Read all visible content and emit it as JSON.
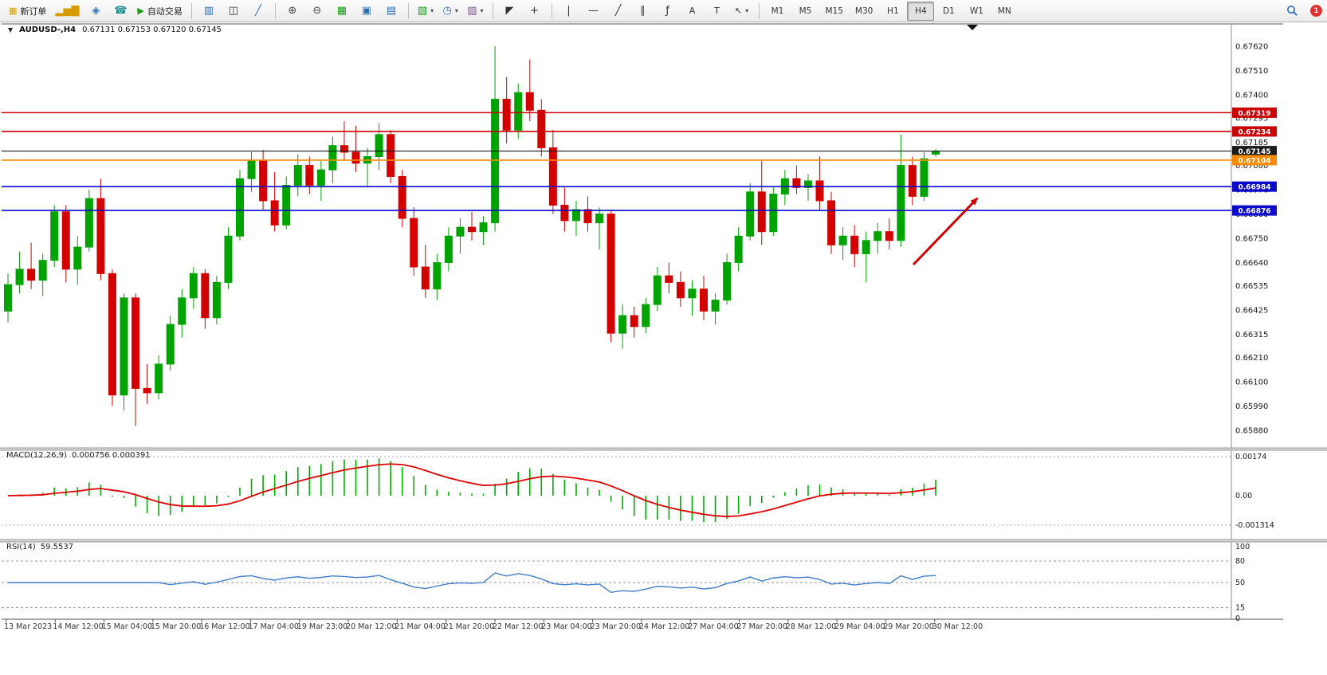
{
  "toolbar": {
    "new_order": "新订单",
    "autotrading": "自动交易",
    "timeframes": [
      "M1",
      "M5",
      "M15",
      "M30",
      "H1",
      "H4",
      "D1",
      "W1",
      "MN"
    ],
    "active_timeframe": "H4",
    "badge_count": "1"
  },
  "header": {
    "title": "AUDUSD-,H4",
    "ohlc_text": "0.67131 0.67153 0.67120 0.67145"
  },
  "icons": {
    "market-watch-icon": "▂▅▇",
    "metaeditor-icon": "◈",
    "support-icon": "☎",
    "autotrading-play-icon": "▶",
    "bar-chart-icon": "▥",
    "candlestick-chart-icon": "◫",
    "line-chart-icon": "╱",
    "zoom-in-icon": "⊕",
    "zoom-out-icon": "⊖",
    "tile-windows-icon": "▦",
    "cascade-windows-icon": "▣",
    "tile-horizontal-icon": "▤",
    "new-chart-icon": "▧",
    "period-icon": "◷",
    "template-icon": "▨",
    "cursor-icon": "◤",
    "crosshair-icon": "+",
    "vline-icon": "|",
    "hline-icon": "—",
    "trendline-icon": "╱",
    "channel-icon": "∥",
    "fibonacci-icon": "ƒ",
    "text-icon": "A",
    "label-icon": "T",
    "arrows-icon": "↖",
    "caret-down-icon": "▾",
    "symbol-dropdown-icon": "▼"
  },
  "colors": {
    "bull": "#00a400",
    "bear": "#d40000",
    "resistance": "#cc0000",
    "support": "#0a0acc",
    "level": "#ff8a00",
    "current": "#1b1b1b",
    "macd_bar": "#00ae00",
    "macd_signal": "#e00000",
    "rsi_line": "#3f7cc9"
  },
  "chart_data": {
    "type": "candlestick",
    "symbol": "AUDUSD-",
    "timeframe": "H4",
    "ohlc_current": [
      0.67131,
      0.67153,
      0.6712,
      0.67145
    ],
    "price_axis": [
      "0.67620",
      "0.67510",
      "0.67400",
      "0.67295",
      "0.67185",
      "0.67080",
      "0.66970",
      "0.66860",
      "0.66750",
      "0.66640",
      "0.66535",
      "0.66425",
      "0.66315",
      "0.66210",
      "0.66100",
      "0.65990",
      "0.65880"
    ],
    "time_axis": [
      "13 Mar 2023",
      "14 Mar 12:00",
      "15 Mar 04:00",
      "15 Mar 20:00",
      "16 Mar 12:00",
      "17 Mar 04:00",
      "19 Mar 23:00",
      "20 Mar 12:00",
      "21 Mar 04:00",
      "21 Mar 20:00",
      "22 Mar 12:00",
      "23 Mar 04:00",
      "23 Mar 20:00",
      "24 Mar 12:00",
      "27 Mar 04:00",
      "27 Mar 20:00",
      "28 Mar 12:00",
      "29 Mar 04:00",
      "29 Mar 20:00",
      "30 Mar 12:00"
    ],
    "hlines": [
      {
        "price": 0.67319,
        "label": "0.67319",
        "color": "#cc0000",
        "type": "resistance"
      },
      {
        "price": 0.67234,
        "label": "0.67234",
        "color": "#cc0000",
        "type": "resistance"
      },
      {
        "price": 0.67104,
        "label": "0.67104",
        "color": "#ff8a00",
        "type": "level"
      },
      {
        "price": 0.66984,
        "label": "0.66984",
        "color": "#0a0acc",
        "type": "support"
      },
      {
        "price": 0.66876,
        "label": "0.66876",
        "color": "#0a0acc",
        "type": "support"
      }
    ],
    "current_price": {
      "value": 0.67145,
      "label": "0.67145"
    },
    "candles": [
      [
        0.6642,
        0.6659,
        0.6637,
        0.6654
      ],
      [
        0.6654,
        0.6669,
        0.665,
        0.6661
      ],
      [
        0.6661,
        0.6673,
        0.6652,
        0.6656
      ],
      [
        0.6656,
        0.6668,
        0.6649,
        0.6665
      ],
      [
        0.6665,
        0.669,
        0.6662,
        0.6687
      ],
      [
        0.6687,
        0.669,
        0.6655,
        0.6661
      ],
      [
        0.6661,
        0.6676,
        0.6654,
        0.6671
      ],
      [
        0.6671,
        0.6697,
        0.6669,
        0.6693
      ],
      [
        0.6693,
        0.6702,
        0.6656,
        0.6659
      ],
      [
        0.6659,
        0.6661,
        0.6599,
        0.6604
      ],
      [
        0.6604,
        0.665,
        0.6597,
        0.6648
      ],
      [
        0.6648,
        0.665,
        0.659,
        0.6607
      ],
      [
        0.6607,
        0.6618,
        0.66,
        0.6605
      ],
      [
        0.6605,
        0.6622,
        0.6602,
        0.6618
      ],
      [
        0.6618,
        0.664,
        0.6615,
        0.6636
      ],
      [
        0.6636,
        0.6652,
        0.663,
        0.6648
      ],
      [
        0.6648,
        0.6662,
        0.6643,
        0.6659
      ],
      [
        0.6659,
        0.6661,
        0.6634,
        0.6639
      ],
      [
        0.6639,
        0.6658,
        0.6636,
        0.6655
      ],
      [
        0.6655,
        0.668,
        0.6652,
        0.6676
      ],
      [
        0.6676,
        0.6706,
        0.6674,
        0.6702
      ],
      [
        0.6702,
        0.6714,
        0.6696,
        0.671
      ],
      [
        0.671,
        0.6715,
        0.6688,
        0.6692
      ],
      [
        0.6692,
        0.6705,
        0.6678,
        0.6681
      ],
      [
        0.6681,
        0.6703,
        0.6679,
        0.6699
      ],
      [
        0.6699,
        0.6713,
        0.6694,
        0.6708
      ],
      [
        0.6708,
        0.6712,
        0.6695,
        0.6699
      ],
      [
        0.6699,
        0.671,
        0.6692,
        0.6706
      ],
      [
        0.6706,
        0.6721,
        0.67,
        0.6717
      ],
      [
        0.6717,
        0.6728,
        0.671,
        0.6714
      ],
      [
        0.6714,
        0.6726,
        0.6705,
        0.6709
      ],
      [
        0.6709,
        0.6716,
        0.6698,
        0.6712
      ],
      [
        0.6712,
        0.6727,
        0.6706,
        0.6722
      ],
      [
        0.6722,
        0.6724,
        0.67,
        0.6703
      ],
      [
        0.6703,
        0.6706,
        0.668,
        0.6684
      ],
      [
        0.6684,
        0.6689,
        0.6658,
        0.6662
      ],
      [
        0.6662,
        0.6672,
        0.6648,
        0.6652
      ],
      [
        0.6652,
        0.6668,
        0.6647,
        0.6664
      ],
      [
        0.6664,
        0.668,
        0.666,
        0.6676
      ],
      [
        0.6676,
        0.6684,
        0.6668,
        0.668
      ],
      [
        0.668,
        0.6687,
        0.6674,
        0.6678
      ],
      [
        0.6678,
        0.6685,
        0.6672,
        0.6682
      ],
      [
        0.6682,
        0.6762,
        0.6678,
        0.6738
      ],
      [
        0.6738,
        0.6748,
        0.6718,
        0.6724
      ],
      [
        0.6724,
        0.6745,
        0.672,
        0.6741
      ],
      [
        0.6741,
        0.6756,
        0.6728,
        0.6733
      ],
      [
        0.6733,
        0.6738,
        0.6712,
        0.6716
      ],
      [
        0.6716,
        0.6724,
        0.6686,
        0.669
      ],
      [
        0.669,
        0.6698,
        0.6678,
        0.6683
      ],
      [
        0.6683,
        0.6692,
        0.6676,
        0.6688
      ],
      [
        0.6688,
        0.6694,
        0.6678,
        0.6682
      ],
      [
        0.6682,
        0.6689,
        0.667,
        0.6686
      ],
      [
        0.6686,
        0.6688,
        0.6628,
        0.6632
      ],
      [
        0.6632,
        0.6645,
        0.6625,
        0.664
      ],
      [
        0.664,
        0.6644,
        0.663,
        0.6635
      ],
      [
        0.6635,
        0.6648,
        0.6632,
        0.6645
      ],
      [
        0.6645,
        0.6662,
        0.6642,
        0.6658
      ],
      [
        0.6658,
        0.6664,
        0.665,
        0.6655
      ],
      [
        0.6655,
        0.666,
        0.6644,
        0.6648
      ],
      [
        0.6648,
        0.6656,
        0.664,
        0.6652
      ],
      [
        0.6652,
        0.6658,
        0.6638,
        0.6642
      ],
      [
        0.6642,
        0.665,
        0.6636,
        0.6647
      ],
      [
        0.6647,
        0.6668,
        0.6645,
        0.6664
      ],
      [
        0.6664,
        0.668,
        0.666,
        0.6676
      ],
      [
        0.6676,
        0.67,
        0.6674,
        0.6696
      ],
      [
        0.6696,
        0.671,
        0.6672,
        0.6678
      ],
      [
        0.6678,
        0.6698,
        0.6676,
        0.6695
      ],
      [
        0.6695,
        0.6706,
        0.669,
        0.6702
      ],
      [
        0.6702,
        0.6708,
        0.6695,
        0.6698
      ],
      [
        0.6698,
        0.6704,
        0.6692,
        0.6701
      ],
      [
        0.6701,
        0.6712,
        0.6688,
        0.6692
      ],
      [
        0.6692,
        0.6696,
        0.6668,
        0.6672
      ],
      [
        0.6672,
        0.668,
        0.6665,
        0.6676
      ],
      [
        0.6676,
        0.6681,
        0.6662,
        0.6668
      ],
      [
        0.6668,
        0.6678,
        0.6655,
        0.6674
      ],
      [
        0.6674,
        0.6682,
        0.6668,
        0.6678
      ],
      [
        0.6678,
        0.6684,
        0.667,
        0.6674
      ],
      [
        0.6674,
        0.6722,
        0.6671,
        0.6708
      ],
      [
        0.6708,
        0.6712,
        0.669,
        0.6694
      ],
      [
        0.6694,
        0.6714,
        0.6692,
        0.6711
      ],
      [
        0.67131,
        0.67153,
        0.6712,
        0.67145
      ]
    ],
    "indicators": {
      "macd": {
        "label": "MACD(12,26,9)",
        "values": "0.000756 0.000391",
        "params": [
          12,
          26,
          9
        ],
        "axis_labels": [
          "0.00174",
          "0.00",
          "-0.001314"
        ]
      },
      "rsi": {
        "label": "RSI(14)",
        "value": "59.5537",
        "period": 14,
        "axis_labels": [
          "100",
          "80",
          "50",
          "15",
          "0"
        ]
      }
    },
    "annotation_arrow": {
      "from": [
        1146,
        332
      ],
      "to": [
        1226,
        249
      ],
      "color": "#d40000"
    }
  }
}
